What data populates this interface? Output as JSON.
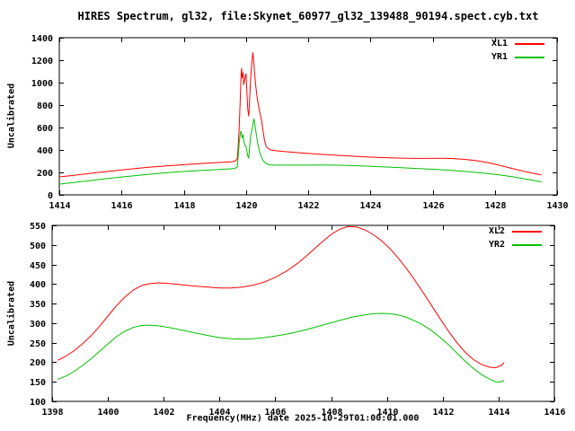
{
  "title": "HIRES Spectrum, gl32, file:Skynet_60977_gl32_139488_90194.spect.cyb.txt",
  "xlabel": "Frequency(MHz) date 2025-10-29T01:00:01.000",
  "background": "#ffffff",
  "axis_color": "#000000",
  "chart_data": [
    {
      "type": "line",
      "panel": "top",
      "ylabel": "Uncalibrated",
      "xlim": [
        1414,
        1430
      ],
      "ylim": [
        0,
        1400
      ],
      "xticks": [
        1414,
        1416,
        1418,
        1420,
        1422,
        1424,
        1426,
        1428,
        1430
      ],
      "yticks": [
        0,
        200,
        400,
        600,
        800,
        1000,
        1200,
        1400
      ],
      "grid": false,
      "legend_position": "top-right",
      "series": [
        {
          "name": "XL1",
          "color": "#ff0000",
          "points": [
            [
              1414.0,
              160
            ],
            [
              1414.4,
              172
            ],
            [
              1414.8,
              185
            ],
            [
              1415.2,
              198
            ],
            [
              1415.6,
              210
            ],
            [
              1416.0,
              222
            ],
            [
              1416.4,
              233
            ],
            [
              1416.8,
              244
            ],
            [
              1417.2,
              253
            ],
            [
              1417.6,
              261
            ],
            [
              1418.0,
              269
            ],
            [
              1418.4,
              276
            ],
            [
              1418.8,
              283
            ],
            [
              1419.2,
              289
            ],
            [
              1419.5,
              294
            ],
            [
              1419.65,
              299
            ],
            [
              1419.72,
              320
            ],
            [
              1419.75,
              430
            ],
            [
              1419.78,
              580
            ],
            [
              1419.81,
              800
            ],
            [
              1419.84,
              1050
            ],
            [
              1419.86,
              1130
            ],
            [
              1419.88,
              1040
            ],
            [
              1419.91,
              1090
            ],
            [
              1419.93,
              980
            ],
            [
              1419.96,
              1030
            ],
            [
              1420.0,
              1080
            ],
            [
              1420.03,
              920
            ],
            [
              1420.06,
              760
            ],
            [
              1420.09,
              700
            ],
            [
              1420.12,
              860
            ],
            [
              1420.15,
              1030
            ],
            [
              1420.18,
              1150
            ],
            [
              1420.22,
              1270
            ],
            [
              1420.25,
              1190
            ],
            [
              1420.28,
              1080
            ],
            [
              1420.32,
              960
            ],
            [
              1420.36,
              870
            ],
            [
              1420.4,
              800
            ],
            [
              1420.45,
              730
            ],
            [
              1420.5,
              665
            ],
            [
              1420.55,
              570
            ],
            [
              1420.6,
              480
            ],
            [
              1420.65,
              432
            ],
            [
              1420.72,
              412
            ],
            [
              1420.8,
              400
            ],
            [
              1421.0,
              392
            ],
            [
              1421.4,
              382
            ],
            [
              1421.8,
              373
            ],
            [
              1422.2,
              365
            ],
            [
              1422.6,
              358
            ],
            [
              1423.0,
              351
            ],
            [
              1423.4,
              345
            ],
            [
              1423.8,
              339
            ],
            [
              1424.2,
              334
            ],
            [
              1424.6,
              330
            ],
            [
              1425.0,
              327
            ],
            [
              1425.4,
              325
            ],
            [
              1425.8,
              325
            ],
            [
              1426.2,
              326
            ],
            [
              1426.6,
              324
            ],
            [
              1427.0,
              317
            ],
            [
              1427.4,
              305
            ],
            [
              1427.8,
              286
            ],
            [
              1428.2,
              260
            ],
            [
              1428.6,
              232
            ],
            [
              1429.0,
              206
            ],
            [
              1429.3,
              188
            ],
            [
              1429.5,
              178
            ]
          ]
        },
        {
          "name": "YR1",
          "color": "#00c000",
          "points": [
            [
              1414.0,
              95
            ],
            [
              1414.4,
              108
            ],
            [
              1414.8,
              121
            ],
            [
              1415.2,
              134
            ],
            [
              1415.6,
              147
            ],
            [
              1416.0,
              159
            ],
            [
              1416.4,
              170
            ],
            [
              1416.8,
              181
            ],
            [
              1417.2,
              191
            ],
            [
              1417.6,
              200
            ],
            [
              1418.0,
              208
            ],
            [
              1418.4,
              215
            ],
            [
              1418.8,
              221
            ],
            [
              1419.2,
              227
            ],
            [
              1419.5,
              231
            ],
            [
              1419.65,
              236
            ],
            [
              1419.72,
              250
            ],
            [
              1419.75,
              340
            ],
            [
              1419.78,
              450
            ],
            [
              1419.81,
              530
            ],
            [
              1419.84,
              570
            ],
            [
              1419.86,
              545
            ],
            [
              1419.88,
              505
            ],
            [
              1419.91,
              535
            ],
            [
              1419.93,
              490
            ],
            [
              1419.96,
              445
            ],
            [
              1420.0,
              430
            ],
            [
              1420.03,
              390
            ],
            [
              1420.06,
              345
            ],
            [
              1420.09,
              330
            ],
            [
              1420.12,
              430
            ],
            [
              1420.15,
              520
            ],
            [
              1420.18,
              565
            ],
            [
              1420.22,
              610
            ],
            [
              1420.25,
              680
            ],
            [
              1420.28,
              640
            ],
            [
              1420.32,
              565
            ],
            [
              1420.36,
              490
            ],
            [
              1420.4,
              430
            ],
            [
              1420.45,
              375
            ],
            [
              1420.5,
              335
            ],
            [
              1420.56,
              303
            ],
            [
              1420.62,
              283
            ],
            [
              1420.7,
              272
            ],
            [
              1420.8,
              267
            ],
            [
              1421.0,
              265
            ],
            [
              1421.5,
              265
            ],
            [
              1422.0,
              265
            ],
            [
              1422.5,
              266
            ],
            [
              1423.0,
              264
            ],
            [
              1423.4,
              261
            ],
            [
              1423.8,
              257
            ],
            [
              1424.2,
              252
            ],
            [
              1424.6,
              247
            ],
            [
              1425.0,
              242
            ],
            [
              1425.4,
              236
            ],
            [
              1425.8,
              231
            ],
            [
              1426.2,
              225
            ],
            [
              1426.6,
              218
            ],
            [
              1427.0,
              210
            ],
            [
              1427.4,
              200
            ],
            [
              1427.8,
              189
            ],
            [
              1428.2,
              176
            ],
            [
              1428.6,
              160
            ],
            [
              1429.0,
              140
            ],
            [
              1429.3,
              126
            ],
            [
              1429.5,
              115
            ]
          ]
        }
      ]
    },
    {
      "type": "line",
      "panel": "bottom",
      "ylabel": "Uncalibrated",
      "xlim": [
        1398,
        1416
      ],
      "ylim": [
        100,
        550
      ],
      "xticks": [
        1398,
        1400,
        1402,
        1404,
        1406,
        1408,
        1410,
        1412,
        1414,
        1416
      ],
      "yticks": [
        100,
        150,
        200,
        250,
        300,
        350,
        400,
        450,
        500,
        550
      ],
      "grid": false,
      "legend_position": "top-right",
      "series": [
        {
          "name": "XL2",
          "color": "#ff0000",
          "points": [
            [
              1398.2,
              205
            ],
            [
              1398.5,
              216
            ],
            [
              1398.8,
              230
            ],
            [
              1399.1,
              248
            ],
            [
              1399.4,
              268
            ],
            [
              1399.7,
              292
            ],
            [
              1400.0,
              318
            ],
            [
              1400.3,
              344
            ],
            [
              1400.6,
              366
            ],
            [
              1400.9,
              384
            ],
            [
              1401.2,
              396
            ],
            [
              1401.5,
              401
            ],
            [
              1401.8,
              403
            ],
            [
              1402.1,
              402
            ],
            [
              1402.4,
              400
            ],
            [
              1402.8,
              397
            ],
            [
              1403.2,
              394
            ],
            [
              1403.6,
              392
            ],
            [
              1404.0,
              390
            ],
            [
              1404.4,
              390
            ],
            [
              1404.8,
              392
            ],
            [
              1405.2,
              397
            ],
            [
              1405.6,
              405
            ],
            [
              1406.0,
              417
            ],
            [
              1406.4,
              433
            ],
            [
              1406.8,
              453
            ],
            [
              1407.2,
              477
            ],
            [
              1407.6,
              503
            ],
            [
              1408.0,
              527
            ],
            [
              1408.3,
              540
            ],
            [
              1408.6,
              547
            ],
            [
              1408.9,
              546
            ],
            [
              1409.2,
              539
            ],
            [
              1409.5,
              527
            ],
            [
              1409.8,
              511
            ],
            [
              1410.1,
              491
            ],
            [
              1410.4,
              467
            ],
            [
              1410.7,
              440
            ],
            [
              1411.0,
              410
            ],
            [
              1411.3,
              378
            ],
            [
              1411.6,
              345
            ],
            [
              1411.9,
              312
            ],
            [
              1412.2,
              280
            ],
            [
              1412.5,
              251
            ],
            [
              1412.8,
              226
            ],
            [
              1413.1,
              207
            ],
            [
              1413.4,
              194
            ],
            [
              1413.7,
              187
            ],
            [
              1413.9,
              186
            ],
            [
              1414.1,
              192
            ],
            [
              1414.2,
              199
            ]
          ]
        },
        {
          "name": "YR2",
          "color": "#00c000",
          "points": [
            [
              1398.2,
              156
            ],
            [
              1398.5,
              165
            ],
            [
              1398.8,
              177
            ],
            [
              1399.1,
              192
            ],
            [
              1399.4,
              209
            ],
            [
              1399.7,
              228
            ],
            [
              1400.0,
              247
            ],
            [
              1400.3,
              265
            ],
            [
              1400.6,
              279
            ],
            [
              1400.9,
              289
            ],
            [
              1401.2,
              294
            ],
            [
              1401.5,
              295
            ],
            [
              1401.8,
              293
            ],
            [
              1402.1,
              290
            ],
            [
              1402.4,
              286
            ],
            [
              1402.8,
              280
            ],
            [
              1403.2,
              274
            ],
            [
              1403.6,
              268
            ],
            [
              1404.0,
              263
            ],
            [
              1404.4,
              260
            ],
            [
              1404.8,
              259
            ],
            [
              1405.2,
              260
            ],
            [
              1405.6,
              263
            ],
            [
              1406.0,
              267
            ],
            [
              1406.4,
              272
            ],
            [
              1406.8,
              278
            ],
            [
              1407.2,
              285
            ],
            [
              1407.6,
              293
            ],
            [
              1408.0,
              301
            ],
            [
              1408.4,
              309
            ],
            [
              1408.8,
              316
            ],
            [
              1409.2,
              321
            ],
            [
              1409.5,
              324
            ],
            [
              1409.8,
              325
            ],
            [
              1410.1,
              324
            ],
            [
              1410.4,
              321
            ],
            [
              1410.7,
              315
            ],
            [
              1411.0,
              306
            ],
            [
              1411.3,
              295
            ],
            [
              1411.6,
              281
            ],
            [
              1411.9,
              264
            ],
            [
              1412.2,
              245
            ],
            [
              1412.5,
              224
            ],
            [
              1412.8,
              203
            ],
            [
              1413.1,
              184
            ],
            [
              1413.4,
              168
            ],
            [
              1413.7,
              156
            ],
            [
              1413.9,
              150
            ],
            [
              1414.1,
              150
            ],
            [
              1414.2,
              154
            ]
          ]
        }
      ]
    }
  ]
}
